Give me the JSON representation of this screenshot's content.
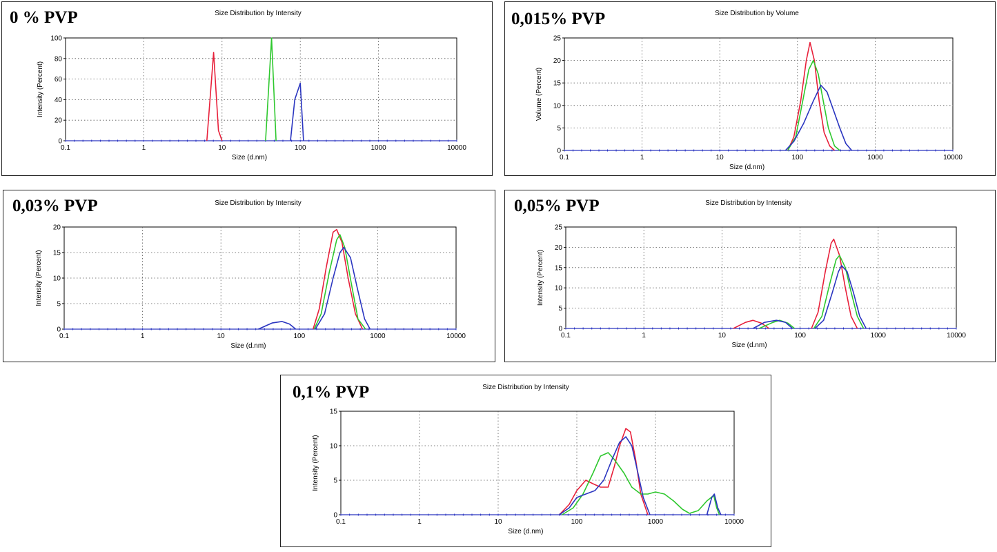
{
  "chart_data": [
    {
      "panel_label": "0 % PVP",
      "title": "Size Distribution by Intensity",
      "type": "line",
      "xscale": "log",
      "xlabel": "Size (d.nm)",
      "ylabel": "Intensity (Percent)",
      "xlim": [
        0.1,
        10000
      ],
      "ylim": [
        0,
        100
      ],
      "xticks": [
        0.1,
        1,
        10,
        100,
        1000,
        10000
      ],
      "xtick_labels": [
        "0.1",
        "1",
        "10",
        "100",
        "1000",
        "10000"
      ],
      "yticks": [
        0,
        20,
        40,
        60,
        80,
        100
      ],
      "grid": true,
      "series": [
        {
          "color": "#e8203a",
          "x": [
            6.4,
            7.8,
            9.0,
            10.0
          ],
          "y": [
            0,
            86,
            10,
            0
          ]
        },
        {
          "color": "#2ec82e",
          "x": [
            36,
            43,
            49
          ],
          "y": [
            0,
            100,
            0
          ]
        },
        {
          "color": "#2a35c0",
          "x": [
            75,
            85,
            100,
            110
          ],
          "y": [
            0,
            40,
            56,
            0
          ]
        }
      ]
    },
    {
      "panel_label": "0,015% PVP",
      "title": "Size Distribution by Volume",
      "type": "line",
      "xscale": "log",
      "xlabel": "Size (d.nm)",
      "ylabel": "Volume (Percent)",
      "xlim": [
        0.1,
        10000
      ],
      "ylim": [
        0,
        25
      ],
      "xticks": [
        0.1,
        1,
        10,
        100,
        1000,
        10000
      ],
      "xtick_labels": [
        "0.1",
        "1",
        "10",
        "100",
        "1000",
        "10000"
      ],
      "yticks": [
        0,
        5,
        10,
        15,
        20,
        25
      ],
      "grid": true,
      "series": [
        {
          "color": "#e8203a",
          "x": [
            75,
            90,
            110,
            130,
            145,
            165,
            190,
            220,
            260,
            300
          ],
          "y": [
            0,
            3,
            11,
            20,
            24,
            20,
            11,
            4,
            1,
            0
          ]
        },
        {
          "color": "#2ec82e",
          "x": [
            75,
            95,
            120,
            140,
            160,
            185,
            215,
            250,
            300,
            350
          ],
          "y": [
            0,
            3,
            12,
            18,
            20,
            17,
            11,
            5,
            1,
            0
          ]
        },
        {
          "color": "#2a35c0",
          "x": [
            70,
            90,
            120,
            160,
            200,
            240,
            290,
            350,
            420,
            500
          ],
          "y": [
            0,
            2,
            6,
            11,
            14.5,
            13,
            9,
            5,
            1.5,
            0
          ]
        }
      ]
    },
    {
      "panel_label": "0,03% PVP",
      "title": "Size Distribution by Intensity",
      "type": "line",
      "xscale": "log",
      "xlabel": "Size (d.nm)",
      "ylabel": "Intensity (Percent)",
      "xlim": [
        0.1,
        10000
      ],
      "ylim": [
        0,
        20
      ],
      "xticks": [
        0.1,
        1,
        10,
        100,
        1000,
        10000
      ],
      "xtick_labels": [
        "0.1",
        "1",
        "10",
        "100",
        "1000",
        "10000"
      ],
      "yticks": [
        0,
        5,
        10,
        15,
        20
      ],
      "grid": true,
      "series": [
        {
          "color": "#e8203a",
          "x": [
            150,
            180,
            220,
            270,
            300,
            350,
            420,
            520,
            640
          ],
          "y": [
            0,
            4,
            12,
            19,
            19.5,
            17,
            10,
            3,
            0
          ]
        },
        {
          "color": "#2ec82e",
          "x": [
            155,
            190,
            240,
            300,
            330,
            380,
            460,
            560,
            700
          ],
          "y": [
            0,
            3,
            11,
            17.5,
            18.5,
            16,
            9,
            2,
            0
          ]
        },
        {
          "color": "#2a35c0",
          "x": [
            30,
            45,
            60,
            75,
            90
          ],
          "y": [
            0,
            1.2,
            1.5,
            1.0,
            0
          ]
        },
        {
          "color": "#2a35c0",
          "x": [
            160,
            210,
            270,
            330,
            370,
            450,
            550,
            680,
            800
          ],
          "y": [
            0,
            3,
            10,
            15,
            16,
            14,
            8,
            2,
            0
          ]
        }
      ]
    },
    {
      "panel_label": "0,05% PVP",
      "title": "Size Distribution by Intensity",
      "type": "line",
      "xscale": "log",
      "xlabel": "Size (d.nm)",
      "ylabel": "Intensity (Percent)",
      "xlim": [
        0.1,
        10000
      ],
      "ylim": [
        0,
        25
      ],
      "xticks": [
        0.1,
        1,
        10,
        100,
        1000,
        10000
      ],
      "xtick_labels": [
        "0.1",
        "1",
        "10",
        "100",
        "1000",
        "10000"
      ],
      "yticks": [
        0,
        5,
        10,
        15,
        20,
        25
      ],
      "grid": true,
      "series": [
        {
          "color": "#e8203a",
          "x": [
            14,
            20,
            25,
            32,
            40
          ],
          "y": [
            0,
            1.5,
            2,
            1.3,
            0
          ]
        },
        {
          "color": "#e8203a",
          "x": [
            140,
            170,
            210,
            250,
            270,
            320,
            380,
            450,
            540
          ],
          "y": [
            0,
            4,
            14,
            21,
            22,
            18,
            10,
            3,
            0
          ]
        },
        {
          "color": "#2ec82e",
          "x": [
            30,
            45,
            55,
            70,
            85
          ],
          "y": [
            0,
            1.5,
            2,
            1.3,
            0
          ]
        },
        {
          "color": "#2ec82e",
          "x": [
            150,
            190,
            240,
            290,
            320,
            380,
            450,
            540,
            650
          ],
          "y": [
            0,
            3,
            11,
            17,
            18,
            15,
            9,
            3,
            0
          ]
        },
        {
          "color": "#2a35c0",
          "x": [
            25,
            35,
            50,
            65,
            80
          ],
          "y": [
            0,
            1.5,
            2,
            1.5,
            0
          ]
        },
        {
          "color": "#2a35c0",
          "x": [
            155,
            200,
            260,
            310,
            340,
            400,
            480,
            580,
            700
          ],
          "y": [
            0,
            2,
            9,
            14,
            15.5,
            14,
            9,
            3,
            0
          ]
        }
      ]
    },
    {
      "panel_label": "0,1% PVP",
      "title": "Size Distribution by Intensity",
      "type": "line",
      "xscale": "log",
      "xlabel": "Size (d.nm)",
      "ylabel": "Intensity (Percent)",
      "xlim": [
        0.1,
        10000
      ],
      "ylim": [
        0,
        15
      ],
      "xticks": [
        0.1,
        1,
        10,
        100,
        1000,
        10000
      ],
      "xtick_labels": [
        "0.1",
        "1",
        "10",
        "100",
        "1000",
        "10000"
      ],
      "yticks": [
        0,
        5,
        10,
        15
      ],
      "grid": true,
      "series": [
        {
          "color": "#e8203a",
          "x": [
            60,
            80,
            100,
            130,
            160,
            200,
            250,
            300,
            350,
            420,
            480,
            560,
            650,
            800
          ],
          "y": [
            0,
            1.5,
            3.5,
            5,
            4.5,
            4,
            4,
            7,
            10,
            12.5,
            12,
            8,
            3,
            0
          ]
        },
        {
          "color": "#2ec82e",
          "x": [
            65,
            90,
            120,
            160,
            200,
            250,
            300,
            400,
            500,
            650,
            800,
            1000,
            1300,
            1700,
            2200,
            2700,
            3500,
            4500,
            5500,
            6000,
            6500
          ],
          "y": [
            0,
            1,
            3,
            6,
            8.5,
            9,
            8,
            6,
            4,
            3,
            3,
            3.3,
            3,
            2,
            0.8,
            0.2,
            0.6,
            2,
            2.8,
            1,
            0
          ]
        },
        {
          "color": "#2a35c0",
          "x": [
            60,
            80,
            100,
            130,
            170,
            220,
            280,
            350,
            420,
            500,
            600,
            700,
            850
          ],
          "y": [
            0,
            1,
            2.5,
            3,
            3.5,
            5,
            8,
            10.5,
            11.3,
            10,
            6,
            2.5,
            0
          ]
        },
        {
          "color": "#2a35c0",
          "x": [
            4500,
            5200,
            5600,
            6200,
            6800
          ],
          "y": [
            0,
            2.5,
            3,
            1,
            0
          ]
        }
      ]
    }
  ]
}
